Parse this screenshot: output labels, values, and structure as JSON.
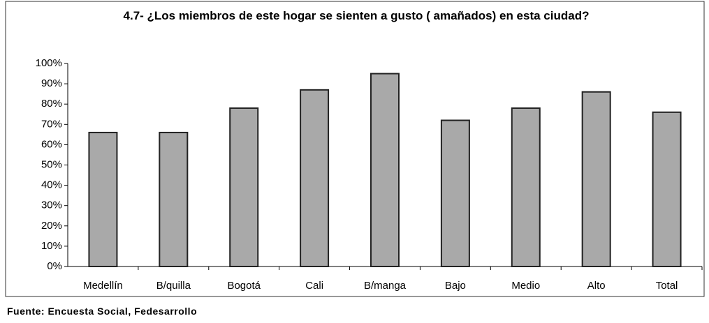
{
  "chart_data": {
    "type": "bar",
    "title": "4.7- ¿Los miembros de este hogar se sienten a gusto ( amañados) en esta ciudad?",
    "categories": [
      "Medellín",
      "B/quilla",
      "Bogotá",
      "Cali",
      "B/manga",
      "Bajo",
      "Medio",
      "Alto",
      "Total"
    ],
    "values": [
      66,
      66,
      78,
      87,
      95,
      72,
      78,
      86,
      76
    ],
    "color": "#a9a9a9",
    "ylim": [
      0,
      100
    ],
    "yticks": [
      {
        "value": 0,
        "label": "0%"
      },
      {
        "value": 10,
        "label": "10%"
      },
      {
        "value": 20,
        "label": "20%"
      },
      {
        "value": 30,
        "label": "30%"
      },
      {
        "value": 40,
        "label": "40%"
      },
      {
        "value": 50,
        "label": "50%"
      },
      {
        "value": 60,
        "label": "60%"
      },
      {
        "value": 70,
        "label": "70%"
      },
      {
        "value": 80,
        "label": "80%"
      },
      {
        "value": 90,
        "label": "90%"
      },
      {
        "value": 100,
        "label": "100%"
      }
    ],
    "source": "Fuente: Encuesta Social, Fedesarrollo"
  }
}
